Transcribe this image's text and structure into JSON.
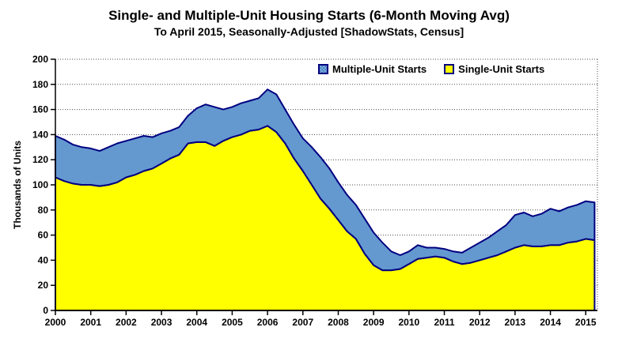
{
  "page": {
    "title": "Single- and Multiple-Unit Housing Starts (6-Month Moving Avg)",
    "subtitle": "To April 2015, Seasonally-Adjusted [ShadowStats, Census]"
  },
  "legend": {
    "multiple_label": "Multiple-Unit Starts",
    "single_label": "Single-Unit Starts"
  },
  "colors": {
    "single_fill": "#ffff00",
    "multiple_fill_dark": "#4f81c7",
    "multiple_fill_light": "#79b0d8",
    "series_outline": "#000080",
    "axis": "#000000",
    "grid": "#4d4d4d",
    "background": "#ffffff"
  },
  "chart_data": {
    "type": "area",
    "stacked": true,
    "title": "Single- and Multiple-Unit Housing Starts (6-Month Moving Avg)",
    "subtitle": "To April 2015, Seasonally-Adjusted [ShadowStats, Census]",
    "ylabel": "Thousands of Units",
    "xlabel": "",
    "ylim": [
      0,
      200
    ],
    "ytick_step": 20,
    "xlim": [
      2000,
      2015.33
    ],
    "grid": true,
    "legend_position": "top-inside",
    "xticks": [
      2000,
      2001,
      2002,
      2003,
      2004,
      2005,
      2006,
      2007,
      2008,
      2009,
      2010,
      2011,
      2012,
      2013,
      2014,
      2015
    ],
    "x": [
      2000.0,
      2000.25,
      2000.5,
      2000.75,
      2001.0,
      2001.25,
      2001.5,
      2001.75,
      2002.0,
      2002.25,
      2002.5,
      2002.75,
      2003.0,
      2003.25,
      2003.5,
      2003.75,
      2004.0,
      2004.25,
      2004.5,
      2004.75,
      2005.0,
      2005.25,
      2005.5,
      2005.75,
      2006.0,
      2006.25,
      2006.5,
      2006.75,
      2007.0,
      2007.25,
      2007.5,
      2007.75,
      2008.0,
      2008.25,
      2008.5,
      2008.75,
      2009.0,
      2009.25,
      2009.5,
      2009.75,
      2010.0,
      2010.25,
      2010.5,
      2010.75,
      2011.0,
      2011.25,
      2011.5,
      2011.75,
      2012.0,
      2012.25,
      2012.5,
      2012.75,
      2013.0,
      2013.25,
      2013.5,
      2013.75,
      2014.0,
      2014.25,
      2014.5,
      2014.75,
      2015.0,
      2015.25
    ],
    "series": [
      {
        "name": "Single-Unit Starts",
        "color": "#ffff00",
        "values": [
          106,
          103,
          101,
          100,
          100,
          99,
          100,
          102,
          106,
          108,
          111,
          113,
          117,
          121,
          124,
          133,
          134,
          134,
          131,
          135,
          138,
          140,
          143,
          144,
          147,
          142,
          133,
          121,
          111,
          100,
          89,
          81,
          72,
          63,
          57,
          45,
          36,
          32,
          32,
          33,
          37,
          41,
          42,
          43,
          42,
          39,
          37,
          38,
          40,
          42,
          44,
          47,
          50,
          52,
          51,
          51,
          52,
          52,
          54,
          55,
          57,
          56
        ]
      },
      {
        "name": "Multiple-Unit Starts",
        "color": "#6699cc",
        "values": [
          33,
          33,
          31,
          30,
          29,
          28,
          30,
          31,
          29,
          29,
          28,
          25,
          24,
          22,
          22,
          22,
          27,
          30,
          31,
          25,
          24,
          25,
          24,
          25,
          29,
          30,
          27,
          27,
          26,
          30,
          33,
          32,
          30,
          29,
          27,
          28,
          26,
          22,
          15,
          11,
          10,
          11,
          8,
          7,
          7,
          8,
          9,
          12,
          14,
          16,
          19,
          21,
          26,
          26,
          24,
          26,
          29,
          27,
          28,
          29,
          30,
          30
        ]
      }
    ]
  }
}
